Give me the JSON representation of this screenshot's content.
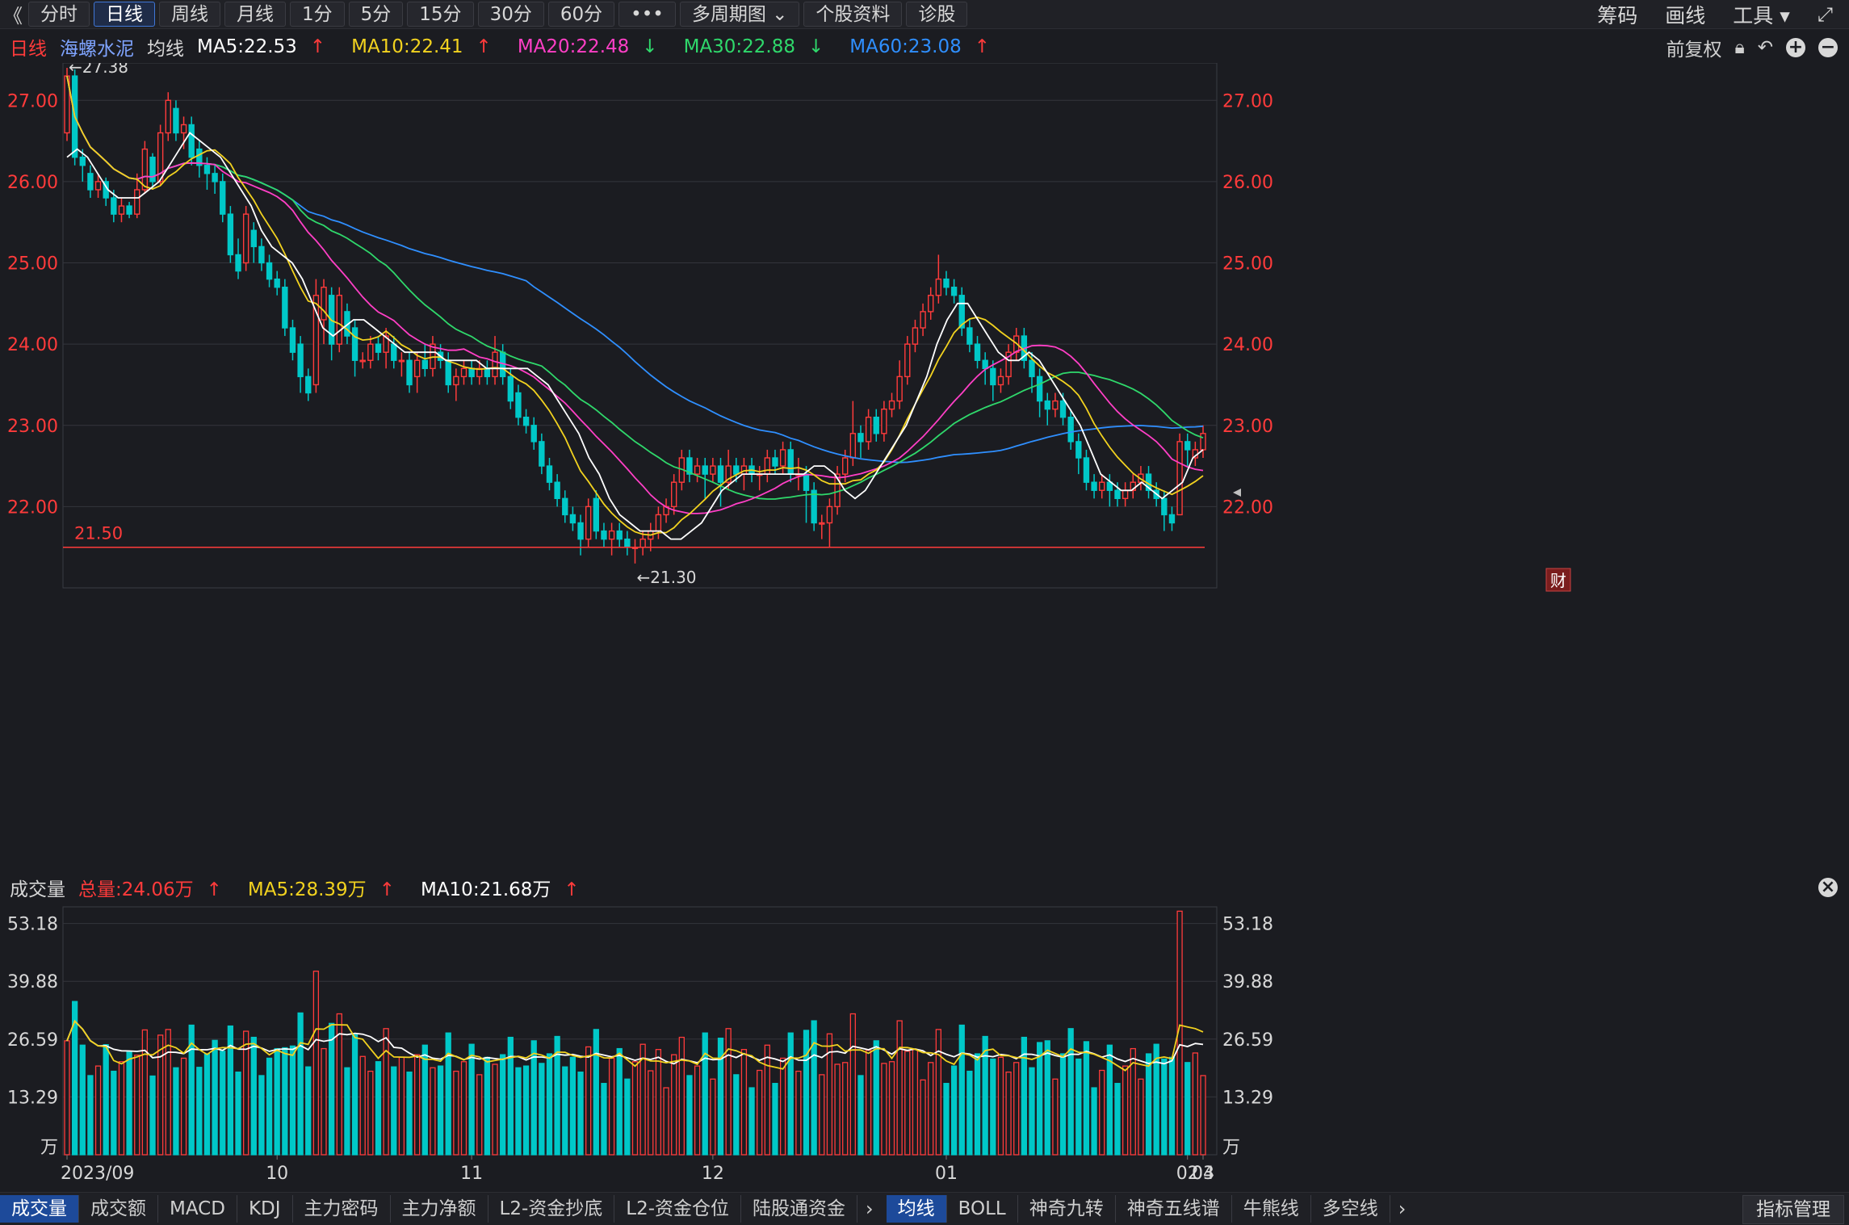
{
  "toolbar": {
    "back": "《",
    "periods": [
      "分时",
      "日线",
      "周线",
      "月线",
      "1分",
      "5分",
      "15分",
      "30分",
      "60分"
    ],
    "active_period": "日线",
    "more": "•••",
    "multi_period": "多周期图",
    "stock_info": "个股资料",
    "diagnose": "诊股",
    "right": [
      "筹码",
      "画线",
      "工具"
    ]
  },
  "header": {
    "period": "日线",
    "stock_name": "海螺水泥",
    "indicator": "均线",
    "ma5": "MA5:22.53",
    "ma10": "MA10:22.41",
    "ma20": "MA20:22.48",
    "ma30": "MA30:22.88",
    "ma60": "MA60:23.08",
    "restore": "前复权"
  },
  "price_axis": {
    "ticks": [
      "27.00",
      "26.00",
      "25.00",
      "24.00",
      "23.00",
      "22.00"
    ],
    "high_label": "←27.38",
    "low_label": "←21.30",
    "hline_label": "21.50",
    "fin_marker": "财"
  },
  "volume": {
    "title": "成交量",
    "total": "总量:24.06万",
    "ma5": "MA5:28.39万",
    "ma10": "MA10:21.68万",
    "ticks": [
      "53.18",
      "39.88",
      "26.59",
      "13.29",
      "万"
    ]
  },
  "x_axis": [
    "2023/09",
    "10",
    "11",
    "12",
    "01",
    "02",
    "03",
    "04"
  ],
  "bottom_tabs": [
    "成交量",
    "成交额",
    "MACD",
    "KDJ",
    "主力密码",
    "主力净额",
    "L2-资金抄底",
    "L2-资金仓位",
    "陆股通资金"
  ],
  "bottom_tabs2": [
    "均线",
    "BOLL",
    "神奇九转",
    "神奇五线谱",
    "牛熊线",
    "多空线"
  ],
  "bottom_right": "指标管理",
  "colors": {
    "up": "#ff3b3b",
    "down": "#00c8c8",
    "ma5": "#ffffff",
    "ma10": "#f2d21f",
    "ma20": "#ff3fc6",
    "ma30": "#2fd86b",
    "ma60": "#2f8fff"
  },
  "chart_data": {
    "type": "candlestick",
    "ylim": [
      21.0,
      27.5
    ],
    "horizontal_line": 21.5,
    "annotations": {
      "max": 27.38,
      "min": 21.3
    },
    "candles": [
      [
        26.6,
        27.3,
        27.4,
        26.5
      ],
      [
        27.3,
        26.3,
        27.38,
        26.2
      ],
      [
        26.3,
        26.2,
        26.4,
        26.0
      ],
      [
        26.1,
        25.9,
        26.2,
        25.8
      ],
      [
        25.9,
        26.0,
        26.1,
        25.8
      ],
      [
        26.0,
        25.8,
        26.05,
        25.7
      ],
      [
        25.8,
        25.6,
        25.9,
        25.5
      ],
      [
        25.6,
        25.7,
        25.8,
        25.5
      ],
      [
        25.7,
        25.6,
        25.75,
        25.55
      ],
      [
        25.6,
        25.9,
        26.1,
        25.55
      ],
      [
        25.9,
        26.4,
        26.5,
        25.85
      ],
      [
        26.3,
        26.0,
        26.35,
        25.9
      ],
      [
        26.0,
        26.6,
        26.7,
        25.95
      ],
      [
        26.6,
        27.0,
        27.1,
        26.5
      ],
      [
        26.9,
        26.6,
        27.0,
        26.5
      ],
      [
        26.6,
        26.7,
        26.8,
        26.4
      ],
      [
        26.7,
        26.3,
        26.8,
        26.2
      ],
      [
        26.4,
        26.2,
        26.5,
        26.05
      ],
      [
        26.2,
        26.1,
        26.3,
        25.9
      ],
      [
        26.1,
        26.0,
        26.2,
        25.85
      ],
      [
        26.0,
        25.6,
        26.1,
        25.5
      ],
      [
        25.6,
        25.1,
        25.7,
        25.0
      ],
      [
        25.1,
        24.9,
        25.3,
        24.8
      ],
      [
        25.0,
        25.6,
        25.7,
        24.9
      ],
      [
        25.4,
        25.2,
        25.5,
        25.0
      ],
      [
        25.2,
        25.0,
        25.3,
        24.9
      ],
      [
        25.0,
        24.8,
        25.1,
        24.7
      ],
      [
        24.8,
        24.7,
        24.9,
        24.6
      ],
      [
        24.7,
        24.2,
        24.8,
        24.1
      ],
      [
        24.2,
        23.9,
        24.3,
        23.8
      ],
      [
        24.0,
        23.6,
        24.1,
        23.4
      ],
      [
        23.6,
        23.4,
        23.7,
        23.3
      ],
      [
        23.5,
        24.6,
        24.8,
        23.4
      ],
      [
        24.3,
        24.7,
        24.8,
        24.0
      ],
      [
        24.6,
        24.0,
        24.7,
        23.8
      ],
      [
        24.0,
        24.6,
        24.7,
        23.9
      ],
      [
        24.4,
        24.1,
        24.5,
        24.0
      ],
      [
        24.2,
        23.8,
        24.3,
        23.6
      ],
      [
        23.8,
        23.8,
        23.9,
        23.7
      ],
      [
        23.8,
        24.0,
        24.1,
        23.7
      ],
      [
        24.0,
        23.9,
        24.1,
        23.8
      ],
      [
        23.9,
        24.1,
        24.2,
        23.7
      ],
      [
        24.0,
        23.8,
        24.1,
        23.7
      ],
      [
        23.8,
        23.8,
        23.9,
        23.6
      ],
      [
        23.8,
        23.5,
        23.9,
        23.4
      ],
      [
        23.6,
        23.8,
        23.9,
        23.4
      ],
      [
        23.8,
        23.7,
        24.0,
        23.6
      ],
      [
        23.7,
        24.0,
        24.1,
        23.6
      ],
      [
        23.9,
        23.8,
        24.0,
        23.7
      ],
      [
        23.8,
        23.5,
        23.9,
        23.4
      ],
      [
        23.5,
        23.6,
        23.7,
        23.3
      ],
      [
        23.6,
        23.7,
        23.8,
        23.5
      ],
      [
        23.7,
        23.6,
        23.8,
        23.5
      ],
      [
        23.6,
        23.7,
        23.8,
        23.5
      ],
      [
        23.7,
        23.6,
        23.8,
        23.5
      ],
      [
        23.6,
        23.9,
        24.1,
        23.5
      ],
      [
        23.9,
        23.6,
        24.0,
        23.5
      ],
      [
        23.6,
        23.3,
        23.7,
        23.2
      ],
      [
        23.4,
        23.1,
        23.5,
        23.0
      ],
      [
        23.1,
        23.0,
        23.2,
        22.9
      ],
      [
        23.0,
        22.8,
        23.1,
        22.7
      ],
      [
        22.8,
        22.5,
        22.9,
        22.4
      ],
      [
        22.5,
        22.3,
        22.6,
        22.2
      ],
      [
        22.3,
        22.1,
        22.4,
        22.0
      ],
      [
        22.1,
        21.9,
        22.2,
        21.8
      ],
      [
        21.9,
        21.8,
        22.0,
        21.7
      ],
      [
        21.8,
        21.6,
        21.9,
        21.4
      ],
      [
        21.6,
        22.0,
        22.1,
        21.5
      ],
      [
        22.1,
        21.7,
        22.2,
        21.6
      ],
      [
        21.7,
        21.6,
        21.8,
        21.5
      ],
      [
        21.6,
        21.7,
        21.8,
        21.4
      ],
      [
        21.7,
        21.6,
        21.8,
        21.5
      ],
      [
        21.6,
        21.5,
        21.7,
        21.4
      ],
      [
        21.5,
        21.5,
        21.6,
        21.3
      ],
      [
        21.5,
        21.6,
        21.7,
        21.4
      ],
      [
        21.6,
        21.7,
        21.8,
        21.45
      ],
      [
        21.7,
        21.9,
        22.0,
        21.6
      ],
      [
        21.9,
        22.0,
        22.1,
        21.8
      ],
      [
        22.0,
        22.3,
        22.4,
        21.9
      ],
      [
        22.3,
        22.6,
        22.7,
        22.2
      ],
      [
        22.6,
        22.4,
        22.7,
        22.3
      ],
      [
        22.4,
        22.5,
        22.6,
        22.3
      ],
      [
        22.5,
        22.4,
        22.6,
        22.1
      ],
      [
        22.4,
        22.5,
        22.6,
        22.3
      ],
      [
        22.5,
        22.3,
        22.6,
        22.0
      ],
      [
        22.3,
        22.5,
        22.7,
        22.2
      ],
      [
        22.5,
        22.4,
        22.6,
        22.3
      ],
      [
        22.4,
        22.5,
        22.6,
        22.2
      ],
      [
        22.5,
        22.4,
        22.6,
        22.3
      ],
      [
        22.4,
        22.4,
        22.5,
        22.2
      ],
      [
        22.4,
        22.6,
        22.7,
        22.3
      ],
      [
        22.6,
        22.5,
        22.7,
        22.4
      ],
      [
        22.5,
        22.7,
        22.8,
        22.4
      ],
      [
        22.7,
        22.4,
        22.8,
        22.3
      ],
      [
        22.4,
        22.4,
        22.6,
        22.2
      ],
      [
        22.4,
        22.2,
        22.5,
        21.8
      ],
      [
        22.2,
        21.8,
        22.3,
        21.7
      ],
      [
        21.8,
        21.8,
        21.9,
        21.6
      ],
      [
        21.8,
        22.0,
        22.1,
        21.5
      ],
      [
        22.0,
        22.4,
        22.5,
        21.9
      ],
      [
        22.4,
        22.6,
        22.7,
        22.3
      ],
      [
        22.6,
        22.9,
        23.3,
        22.5
      ],
      [
        22.9,
        22.8,
        23.0,
        22.6
      ],
      [
        22.8,
        23.1,
        23.2,
        22.7
      ],
      [
        23.1,
        22.9,
        23.2,
        22.8
      ],
      [
        22.9,
        23.2,
        23.3,
        22.8
      ],
      [
        23.2,
        23.3,
        23.4,
        23.1
      ],
      [
        23.3,
        23.6,
        23.8,
        23.2
      ],
      [
        23.6,
        24.0,
        24.1,
        23.5
      ],
      [
        24.0,
        24.2,
        24.3,
        23.9
      ],
      [
        24.2,
        24.4,
        24.5,
        24.1
      ],
      [
        24.4,
        24.6,
        24.7,
        24.3
      ],
      [
        24.6,
        24.8,
        25.1,
        24.5
      ],
      [
        24.8,
        24.7,
        24.9,
        24.6
      ],
      [
        24.7,
        24.6,
        24.8,
        24.5
      ],
      [
        24.6,
        24.2,
        24.7,
        24.1
      ],
      [
        24.2,
        24.0,
        24.3,
        23.9
      ],
      [
        24.0,
        23.8,
        24.1,
        23.7
      ],
      [
        23.8,
        23.7,
        23.9,
        23.5
      ],
      [
        23.7,
        23.5,
        23.8,
        23.3
      ],
      [
        23.5,
        23.6,
        23.7,
        23.4
      ],
      [
        23.6,
        23.9,
        24.0,
        23.5
      ],
      [
        23.9,
        24.1,
        24.2,
        23.8
      ],
      [
        24.1,
        23.8,
        24.2,
        23.7
      ],
      [
        23.8,
        23.6,
        23.9,
        23.4
      ],
      [
        23.6,
        23.3,
        23.7,
        23.1
      ],
      [
        23.3,
        23.2,
        23.4,
        23.0
      ],
      [
        23.2,
        23.3,
        23.4,
        23.1
      ],
      [
        23.3,
        23.1,
        23.4,
        23.0
      ],
      [
        23.1,
        22.8,
        23.2,
        22.7
      ],
      [
        22.8,
        22.6,
        22.9,
        22.4
      ],
      [
        22.6,
        22.3,
        22.7,
        22.2
      ],
      [
        22.3,
        22.2,
        22.4,
        22.1
      ],
      [
        22.2,
        22.3,
        22.4,
        22.1
      ],
      [
        22.3,
        22.2,
        22.4,
        22.0
      ],
      [
        22.2,
        22.1,
        22.3,
        22.0
      ],
      [
        22.1,
        22.2,
        22.3,
        22.0
      ],
      [
        22.2,
        22.3,
        22.4,
        22.1
      ],
      [
        22.3,
        22.4,
        22.5,
        22.2
      ],
      [
        22.4,
        22.2,
        22.5,
        22.1
      ],
      [
        22.2,
        22.1,
        22.3,
        22.0
      ],
      [
        22.1,
        21.9,
        22.2,
        21.7
      ],
      [
        21.9,
        21.8,
        22.0,
        21.7
      ],
      [
        21.9,
        22.8,
        22.9,
        21.9
      ],
      [
        22.8,
        22.7,
        22.9,
        22.5
      ],
      [
        22.6,
        22.7,
        22.8,
        22.5
      ],
      [
        22.7,
        22.9,
        23.0,
        22.6
      ]
    ],
    "ma5": [
      26.3,
      26.4,
      26.3,
      26.1,
      25.9,
      25.8,
      25.8,
      25.8,
      25.9,
      26.0,
      26.2,
      26.4,
      26.6,
      26.5,
      26.4,
      26.3,
      26.1,
      25.9,
      25.7,
      25.4,
      25.2,
      25.1,
      25.0,
      24.8,
      24.5,
      24.2,
      24.1,
      24.2,
      24.3,
      24.3,
      24.2,
      24.1,
      24.0,
      23.9,
      23.9,
      23.9,
      23.9,
      23.8,
      23.8,
      23.8,
      23.8,
      23.7,
      23.7,
      23.7,
      23.7,
      23.7,
      23.6,
      23.5,
      23.3,
      23.1,
      22.9,
      22.6,
      22.4,
      22.1,
      21.9,
      21.8,
      21.7,
      21.7,
      21.7,
      21.6,
      21.6,
      21.7,
      21.8,
      22.0,
      22.2,
      22.3,
      22.4,
      22.4,
      22.4,
      22.4,
      22.4,
      22.4,
      22.4,
      22.5,
      22.5,
      22.4,
      22.2,
      22.1,
      22.2,
      22.4,
      22.6,
      22.8,
      23.0,
      23.3,
      23.6,
      24.0,
      24.3,
      24.5,
      24.5,
      24.3,
      24.1,
      23.9,
      23.8,
      23.8,
      23.9,
      23.8,
      23.6,
      23.4,
      23.2,
      23.0,
      22.7,
      22.4,
      22.3,
      22.2,
      22.2,
      22.3,
      22.2,
      22.1,
      22.2,
      22.3,
      22.6,
      22.7
    ]
  }
}
